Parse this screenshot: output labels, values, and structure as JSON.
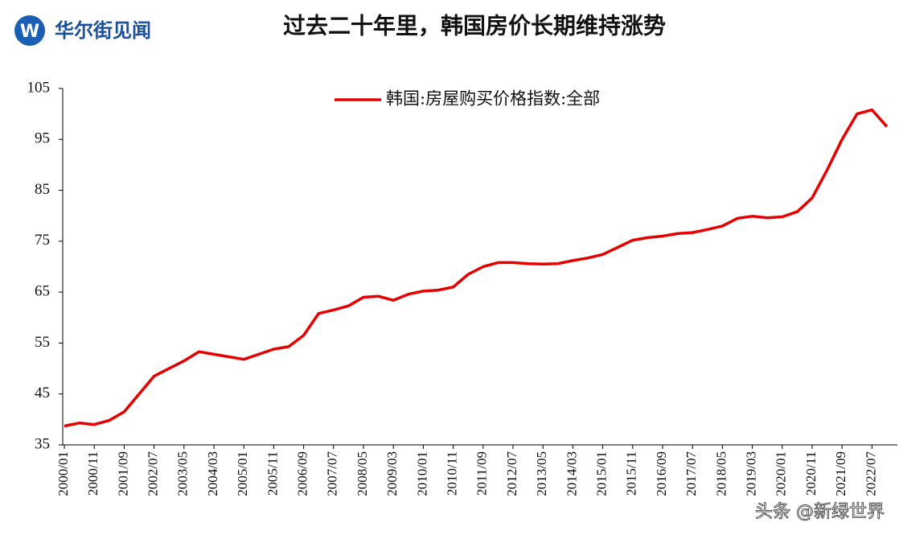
{
  "logo": "华尔街见闻",
  "watermark": "头条 @新绿世界",
  "chart_data": {
    "type": "line",
    "title": "过去二十年里，韩国房价长期维持涨势",
    "categories": [
      "2000/01",
      null,
      "2000/11",
      null,
      "2001/09",
      null,
      "2002/07",
      null,
      "2003/05",
      null,
      "2004/03",
      null,
      "2005/01",
      null,
      "2005/11",
      null,
      "2006/09",
      null,
      "2007/07",
      null,
      "2008/05",
      null,
      "2009/03",
      null,
      "2010/01",
      null,
      "2010/11",
      null,
      "2011/09",
      null,
      "2012/07",
      null,
      "2013/05",
      null,
      "2014/03",
      null,
      "2015/01",
      null,
      "2015/11",
      null,
      "2016/09",
      null,
      "2017/07",
      null,
      "2018/05",
      null,
      "2019/03",
      null,
      "2020/01",
      null,
      "2020/11",
      null,
      "2021/09",
      null,
      "2022/07",
      null
    ],
    "series": [
      {
        "name": "韩国:房屋购买价格指数:全部",
        "color": "#e60000",
        "values": [
          38.7,
          39.3,
          39.0,
          39.8,
          41.5,
          45.0,
          48.5,
          50.0,
          51.5,
          53.3,
          52.8,
          52.3,
          51.8,
          52.8,
          53.8,
          54.3,
          56.5,
          60.8,
          61.5,
          62.3,
          64.0,
          64.2,
          63.4,
          64.6,
          65.2,
          65.4,
          66.0,
          68.5,
          70.0,
          70.8,
          70.8,
          70.6,
          70.5,
          70.6,
          71.2,
          71.7,
          72.4,
          73.8,
          75.2,
          75.7,
          76.0,
          76.5,
          76.7,
          77.3,
          78.0,
          79.5,
          79.9,
          79.6,
          79.8,
          80.8,
          83.5,
          89.0,
          95.0,
          100.0,
          100.8,
          97.5
        ]
      }
    ],
    "ylim": [
      35,
      105
    ],
    "yticks": [
      35,
      45,
      55,
      65,
      75,
      85,
      95,
      105
    ],
    "legend": "top"
  }
}
